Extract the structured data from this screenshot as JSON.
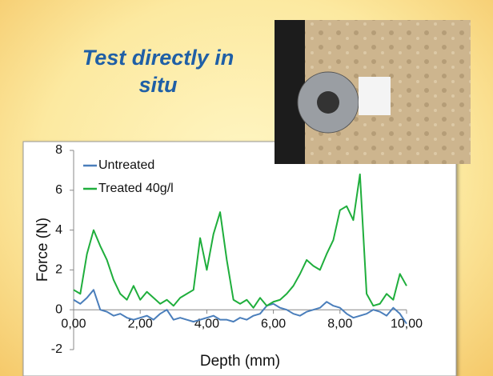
{
  "chart_data": {
    "type": "line",
    "title": "Test directly in situ",
    "x_label": "Depth  (mm)",
    "y_label": "Force  (N)",
    "x": [
      0,
      0.2,
      0.4,
      0.6,
      0.8,
      1,
      1.2,
      1.4,
      1.6,
      1.8,
      2,
      2.2,
      2.4,
      2.6,
      2.8,
      3,
      3.2,
      3.4,
      3.6,
      3.8,
      4,
      4.2,
      4.4,
      4.6,
      4.8,
      5,
      5.2,
      5.4,
      5.6,
      5.8,
      6,
      6.2,
      6.4,
      6.6,
      6.8,
      7,
      7.2,
      7.4,
      7.6,
      7.8,
      8,
      8.2,
      8.4,
      8.6,
      8.8,
      9,
      9.2,
      9.4,
      9.6,
      9.8,
      10
    ],
    "series": [
      {
        "name": "Untreated",
        "color": "#4a7ebb",
        "values": [
          0.5,
          0.3,
          0.6,
          1.0,
          0.0,
          -0.1,
          -0.3,
          -0.2,
          -0.4,
          -0.5,
          -0.4,
          -0.3,
          -0.5,
          -0.2,
          0.0,
          -0.5,
          -0.4,
          -0.5,
          -0.6,
          -0.5,
          -0.4,
          -0.3,
          -0.5,
          -0.5,
          -0.6,
          -0.4,
          -0.5,
          -0.3,
          -0.2,
          0.2,
          0.3,
          0.1,
          0.0,
          -0.2,
          -0.3,
          -0.1,
          0.0,
          0.1,
          0.4,
          0.2,
          0.1,
          -0.2,
          -0.4,
          -0.3,
          -0.2,
          0.0,
          -0.1,
          -0.3,
          0.1,
          -0.2,
          -0.7
        ]
      },
      {
        "name": "Treated 40g/l",
        "color": "#1fae3c",
        "values": [
          1.0,
          0.8,
          2.8,
          4.0,
          3.2,
          2.5,
          1.5,
          0.8,
          0.5,
          1.2,
          0.5,
          0.9,
          0.6,
          0.3,
          0.5,
          0.2,
          0.6,
          0.8,
          1.0,
          3.6,
          2.0,
          3.8,
          4.9,
          2.5,
          0.5,
          0.3,
          0.5,
          0.1,
          0.6,
          0.2,
          0.4,
          0.5,
          0.8,
          1.2,
          1.8,
          2.5,
          2.2,
          2.0,
          2.8,
          3.5,
          5.0,
          5.2,
          4.5,
          6.8,
          0.8,
          0.2,
          0.3,
          0.8,
          0.5,
          1.8,
          1.2
        ]
      }
    ],
    "xlim": [
      0,
      10
    ],
    "xticks": [
      {
        "value": 0,
        "label": "0,00"
      },
      {
        "value": 2,
        "label": "2,00"
      },
      {
        "value": 4,
        "label": "4,00"
      },
      {
        "value": 6,
        "label": "6,00"
      },
      {
        "value": 8,
        "label": "8,00"
      },
      {
        "value": 10,
        "label": "10,00"
      }
    ],
    "ylim": [
      -2,
      8
    ],
    "yticks": [
      -2,
      0,
      2,
      4,
      6,
      8
    ],
    "grid": false,
    "legend": "upper left"
  }
}
